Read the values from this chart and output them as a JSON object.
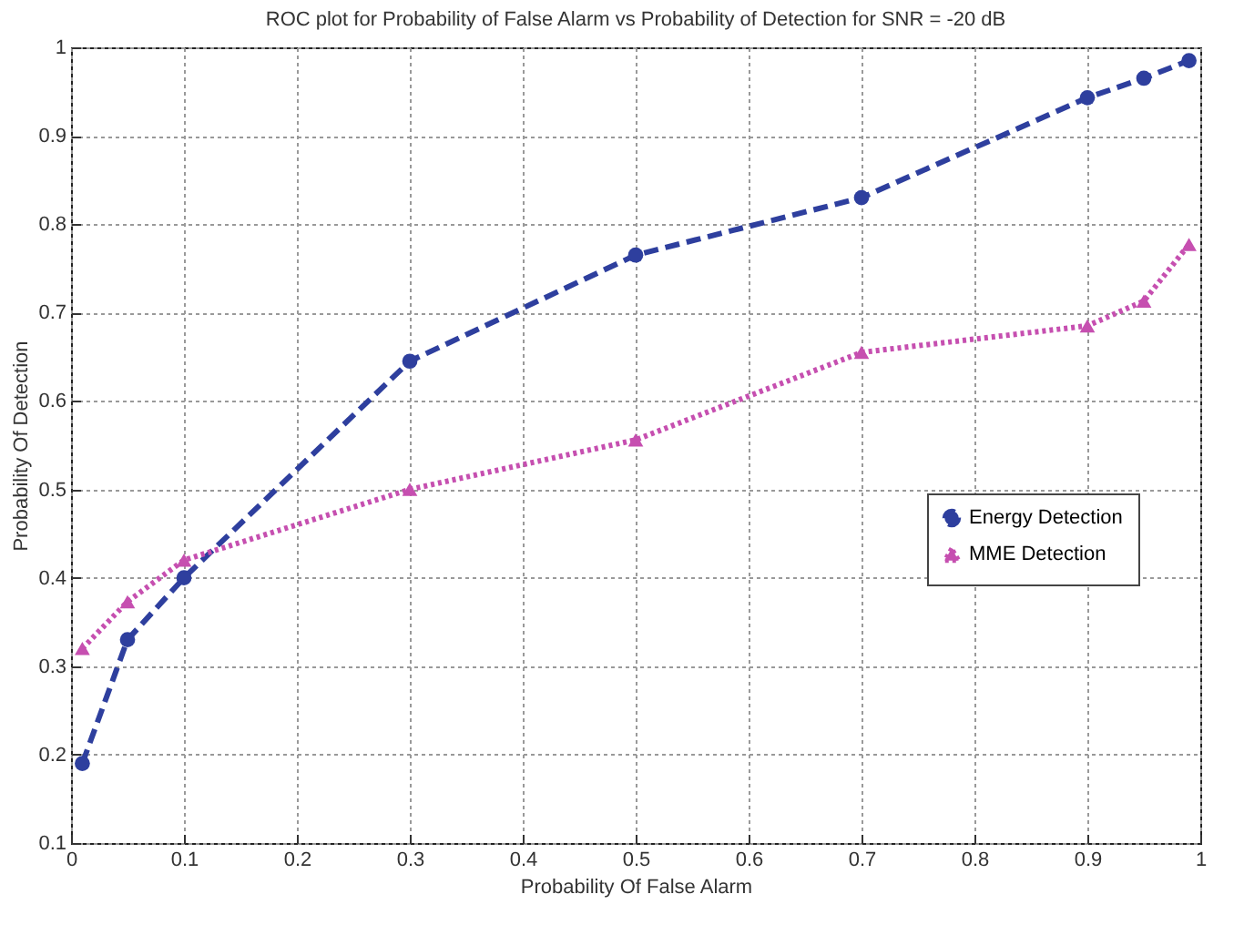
{
  "chart_data": {
    "type": "line",
    "title": "ROC plot for Probability of False Alarm vs Probability of Detection for SNR = -20 dB",
    "xlabel": "Probability Of False Alarm",
    "ylabel": "Probability Of Detection",
    "x": [
      0.01,
      0.05,
      0.1,
      0.3,
      0.5,
      0.7,
      0.9,
      0.95,
      0.99
    ],
    "series": [
      {
        "name": "Energy Detection",
        "color": "#2e3f9e",
        "marker": "circle",
        "line_style": "dashed",
        "values": [
          0.19,
          0.33,
          0.4,
          0.645,
          0.765,
          0.83,
          0.943,
          0.965,
          0.985
        ]
      },
      {
        "name": "MME Detection",
        "color": "#c64fb0",
        "marker": "triangle",
        "line_style": "dotted",
        "values": [
          0.32,
          0.373,
          0.42,
          0.5,
          0.556,
          0.655,
          0.685,
          0.713,
          0.777
        ]
      }
    ],
    "xlim": [
      0,
      1
    ],
    "xticks": [
      0,
      0.1,
      0.2,
      0.3,
      0.4,
      0.5,
      0.6,
      0.7,
      0.8,
      0.9,
      1
    ],
    "ylim": [
      0.1,
      1
    ],
    "yticks": [
      0.1,
      0.2,
      0.3,
      0.4,
      0.5,
      0.6,
      0.7,
      0.8,
      0.9,
      1
    ],
    "grid": true,
    "legend": "right"
  }
}
